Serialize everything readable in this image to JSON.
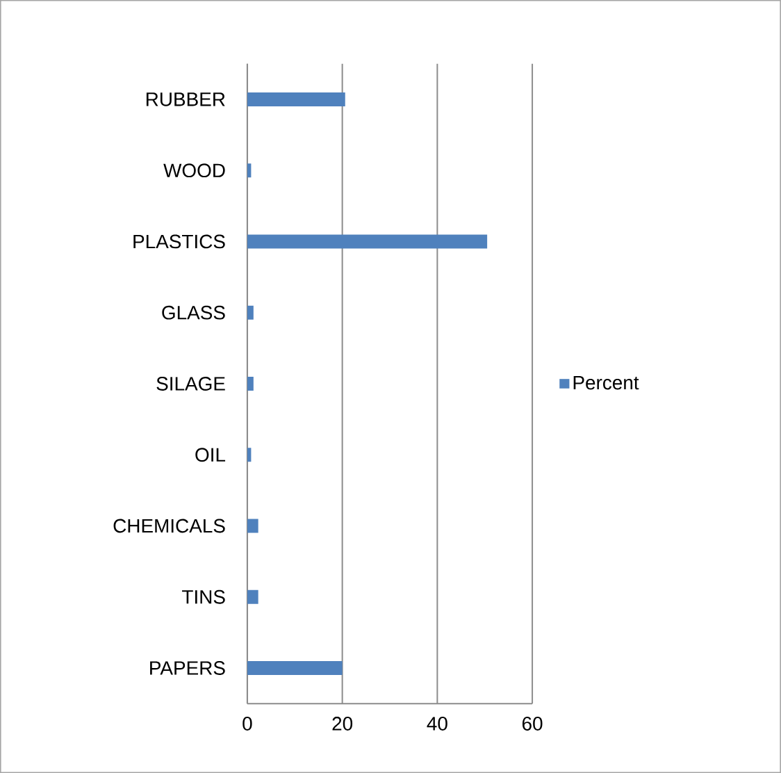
{
  "chart_data": {
    "type": "bar",
    "orientation": "horizontal",
    "categories": [
      "RUBBER",
      "WOOD",
      "PLASTICS",
      "GLASS",
      "SILAGE",
      "OIL",
      "CHEMICALS",
      "TINS",
      "PAPERS"
    ],
    "series": [
      {
        "name": "Percent",
        "color": "#4f81bd",
        "values": [
          20.6,
          0.8,
          50.5,
          1.3,
          1.3,
          0.8,
          2.3,
          2.3,
          20
        ]
      }
    ],
    "xlim": [
      0,
      60
    ],
    "xticks": [
      0,
      20,
      40,
      60
    ],
    "grid": "x",
    "legend": "right"
  }
}
